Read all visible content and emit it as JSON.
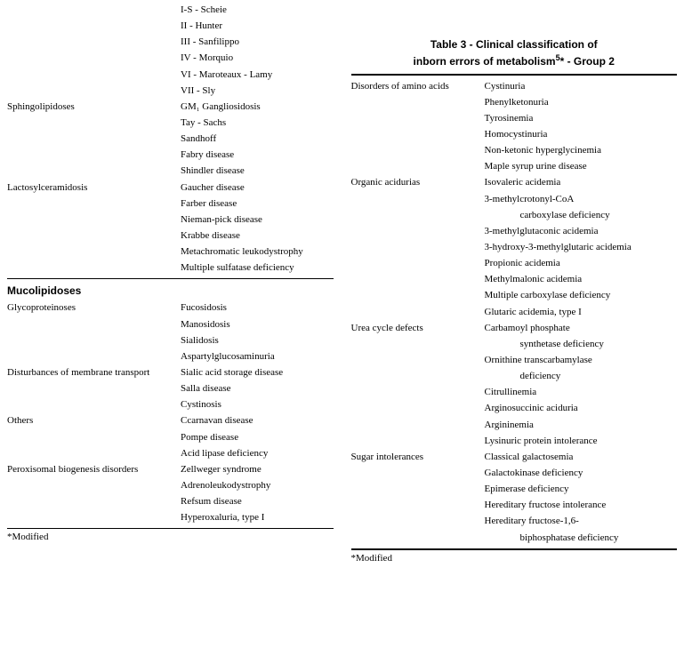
{
  "left": {
    "rows1": [
      {
        "cat": "",
        "val": "I-S - Scheie"
      },
      {
        "cat": "",
        "val": "II - Hunter"
      },
      {
        "cat": "",
        "val": "III - Sanfilippo"
      },
      {
        "cat": "",
        "val": "IV - Morquio"
      },
      {
        "cat": "",
        "val": "VI - Maroteaux - Lamy"
      },
      {
        "cat": "",
        "val": "VII - Sly"
      },
      {
        "cat": "Sphingolipidoses",
        "val": "GM₁ Gangliosidosis"
      },
      {
        "cat": "",
        "val": "Tay - Sachs"
      },
      {
        "cat": "",
        "val": "Sandhoff"
      },
      {
        "cat": "",
        "val": "Fabry disease"
      },
      {
        "cat": "",
        "val": "Shindler disease"
      },
      {
        "cat": "Lactosylceramidosis",
        "val": "Gaucher disease"
      },
      {
        "cat": "",
        "val": "Farber disease"
      },
      {
        "cat": "",
        "val": "Nieman-pick disease"
      },
      {
        "cat": "",
        "val": "Krabbe disease"
      },
      {
        "cat": "",
        "val": "Metachromatic leukodystrophy"
      },
      {
        "cat": "",
        "val": "Multiple sulfatase deficiency"
      }
    ],
    "section": "Mucolipidoses",
    "rows2": [
      {
        "cat": "Glycoproteinoses",
        "val": "Fucosidosis"
      },
      {
        "cat": "",
        "val": "Manosidosis"
      },
      {
        "cat": "",
        "val": "Sialidosis"
      },
      {
        "cat": "",
        "val": "Aspartylglucosaminuria"
      },
      {
        "cat": "Disturbances of membrane transport",
        "val": "Sialic acid storage disease"
      },
      {
        "cat": "",
        "val": "Salla disease"
      },
      {
        "cat": "",
        "val": "Cystinosis"
      },
      {
        "cat": "Others",
        "val": "Ccarnavan disease"
      },
      {
        "cat": "",
        "val": "Pompe disease"
      },
      {
        "cat": "",
        "val": "Acid lipase deficiency"
      },
      {
        "cat": "Peroxisomal biogenesis disorders",
        "val": "Zellweger syndrome"
      },
      {
        "cat": "",
        "val": "Adrenoleukodystrophy"
      },
      {
        "cat": "",
        "val": "Refsum disease"
      },
      {
        "cat": "",
        "val": "Hyperoxaluria, type I"
      }
    ],
    "footer": "*Modified"
  },
  "right": {
    "title_l1": "Table 3 - Clinical classification of",
    "title_l2_a": "inborn errors of metabolism",
    "title_l2_b": "* - Group 2",
    "rows": [
      {
        "cat": "Disorders of amino acids",
        "val": "Cystinuria"
      },
      {
        "cat": "",
        "val": "Phenylketonuria"
      },
      {
        "cat": "",
        "val": "Tyrosinemia"
      },
      {
        "cat": "",
        "val": "Homocystinuria"
      },
      {
        "cat": "",
        "val": "Non-ketonic hyperglycinemia"
      },
      {
        "cat": "",
        "val": "Maple syrup urine disease"
      },
      {
        "cat": "Organic acidurias",
        "val": "Isovaleric acidemia"
      },
      {
        "cat": "",
        "val": "3-methylcrotonyl-CoA"
      },
      {
        "cat": "",
        "val": "carboxylase deficiency",
        "indent": true
      },
      {
        "cat": "",
        "val": "3-methylglutaconic acidemia"
      },
      {
        "cat": "",
        "val": "3-hydroxy-3-methylglutaric acidemia"
      },
      {
        "cat": "",
        "val": "Propionic acidemia"
      },
      {
        "cat": "",
        "val": "Methylmalonic acidemia"
      },
      {
        "cat": "",
        "val": "Multiple carboxylase deficiency"
      },
      {
        "cat": "",
        "val": "Glutaric acidemia, type I"
      },
      {
        "cat": "Urea cycle defects",
        "val": "Carbamoyl phosphate"
      },
      {
        "cat": "",
        "val": "synthetase deficiency",
        "indent": true
      },
      {
        "cat": "",
        "val": "Ornithine transcarbamylase"
      },
      {
        "cat": "",
        "val": "deficiency",
        "indent": true
      },
      {
        "cat": "",
        "val": "Citrullinemia"
      },
      {
        "cat": "",
        "val": "Arginosuccinic aciduria"
      },
      {
        "cat": "",
        "val": "Argininemia"
      },
      {
        "cat": "",
        "val": "Lysinuric protein intolerance"
      },
      {
        "cat": "Sugar intolerances",
        "val": "Classical galactosemia"
      },
      {
        "cat": "",
        "val": "Galactokinase deficiency"
      },
      {
        "cat": "",
        "val": "Epimerase deficiency"
      },
      {
        "cat": "",
        "val": "Hereditary fructose intolerance"
      },
      {
        "cat": "",
        "val": "Hereditary fructose-1,6-"
      },
      {
        "cat": "",
        "val": "biphosphatase deficiency",
        "indent": true
      }
    ],
    "footer": "*Modified"
  }
}
